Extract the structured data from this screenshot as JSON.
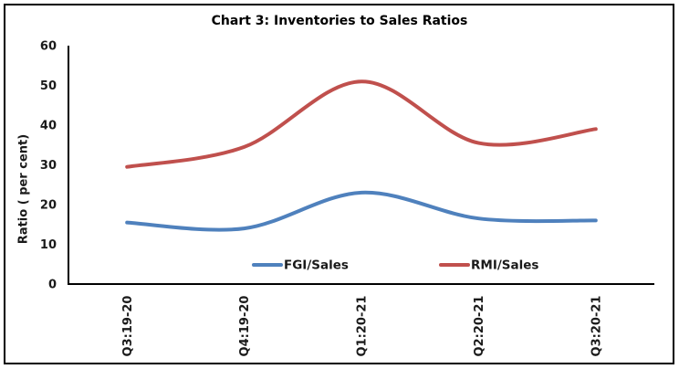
{
  "chart_data": {
    "type": "line",
    "title": "Chart 3: Inventories to Sales Ratios",
    "xlabel": "",
    "ylabel": "Ratio ( per cent)",
    "categories": [
      "Q3:19-20",
      "Q4:19-20",
      "Q1:20-21",
      "Q2:20-21",
      "Q3:20-21"
    ],
    "series": [
      {
        "name": "FGI/Sales",
        "color": "#4F81BD",
        "values": [
          15.5,
          14,
          23,
          16.5,
          16
        ]
      },
      {
        "name": "RMI/Sales",
        "color": "#C0504D",
        "values": [
          29.5,
          34.5,
          51,
          35.5,
          39
        ]
      }
    ],
    "ylim": [
      0,
      60
    ],
    "ytick_interval": 10,
    "yticks": [
      0,
      10,
      20,
      30,
      40,
      50,
      60
    ],
    "grid": false,
    "smooth": true,
    "legend_position": "bottom-inside",
    "legend_marker": "line"
  },
  "colors": {
    "axis": "#000000",
    "text": "#1a1a1a",
    "border": "#000000",
    "background": "#ffffff"
  }
}
